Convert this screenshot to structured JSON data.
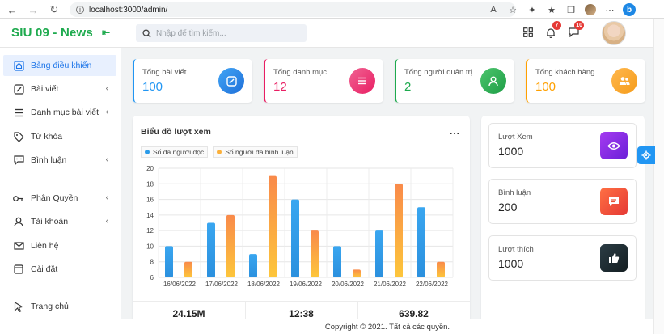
{
  "browser": {
    "url": "localhost:3000/admin/"
  },
  "header": {
    "brand": "SIU 09 - News",
    "search_placeholder": "Nhập để tìm kiếm...",
    "notifications_count": "7",
    "messages_count": "10"
  },
  "sidebar": {
    "items": [
      {
        "label": "Bảng điều khiển",
        "icon": "home-icon",
        "active": true
      },
      {
        "label": "Bài viết",
        "icon": "edit-icon",
        "chevron": true
      },
      {
        "label": "Danh mục bài viết",
        "icon": "list-icon",
        "chevron": true
      },
      {
        "label": "Từ khóa",
        "icon": "tag-icon"
      },
      {
        "label": "Bình luận",
        "icon": "comment-icon",
        "chevron": true
      },
      {
        "label": "Phân Quyền",
        "icon": "key-icon",
        "chevron": true
      },
      {
        "label": "Tài khoản",
        "icon": "user-icon",
        "chevron": true
      },
      {
        "label": "Liên hệ",
        "icon": "mail-icon"
      },
      {
        "label": "Cài đặt",
        "icon": "settings-icon"
      },
      {
        "label": "Trang chủ",
        "icon": "cursor-icon"
      }
    ]
  },
  "stats": [
    {
      "label": "Tổng bài viết",
      "value": "100",
      "color": "#2196f3",
      "icon": "edit-square-icon"
    },
    {
      "label": "Tổng danh mục",
      "value": "12",
      "color": "#e91e63",
      "icon": "list-icon"
    },
    {
      "label": "Tổng người quản trị",
      "value": "2",
      "color": "#1eaa4e",
      "icon": "user-icon"
    },
    {
      "label": "Tổng khách hàng",
      "value": "100",
      "color": "#ffa000",
      "icon": "users-icon"
    }
  ],
  "chart_card": {
    "title": "Biểu đồ lượt xem",
    "more": "...",
    "footer": [
      "24.15M",
      "12:38",
      "639.82"
    ]
  },
  "chart_data": {
    "type": "bar",
    "categories": [
      "16/06/2022",
      "17/06/2022",
      "18/06/2022",
      "19/06/2022",
      "20/06/2022",
      "21/06/2022",
      "22/06/2022"
    ],
    "series": [
      {
        "name": "Số đã người đọc",
        "values": [
          10,
          13,
          9,
          16,
          10,
          12,
          15
        ],
        "color": "#2b9be9"
      },
      {
        "name": "Số người đã bình luận",
        "values": [
          8,
          14,
          19,
          12,
          7,
          18,
          8
        ],
        "color": "#fbb03b"
      }
    ],
    "ylim": [
      6,
      20
    ],
    "yticks": [
      6,
      8,
      10,
      12,
      14,
      16,
      18,
      20
    ],
    "legend": "top-left",
    "grid": true
  },
  "summary": [
    {
      "label": "Lượt Xem",
      "value": "1000",
      "color": "#8e24e8",
      "icon": "eye-icon"
    },
    {
      "label": "Bình luận",
      "value": "200",
      "color": "#f4511e",
      "icon": "chat-icon"
    },
    {
      "label": "Lượt thích",
      "value": "1000",
      "color": "#1f2d33",
      "icon": "thumbs-up-icon"
    }
  ],
  "footer": {
    "copyright": "Copyright © 2021. Tất cả các quyền."
  }
}
